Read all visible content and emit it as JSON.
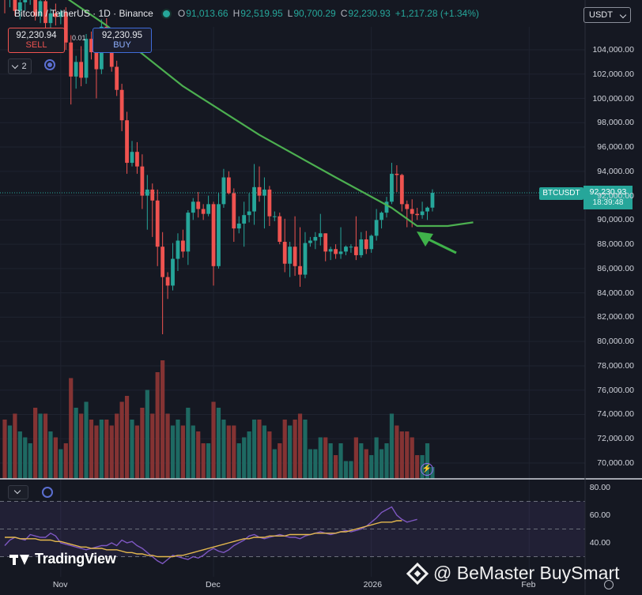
{
  "header": {
    "symbol": "Bitcoin / TetherUS · 1D · Binance",
    "open_key": "O",
    "open": "91,013.66",
    "high_key": "H",
    "high": "92,519.95",
    "low_key": "L",
    "low": "90,700.29",
    "close_key": "C",
    "close": "92,230.93",
    "change": "+1,217.28 (+1.34%)"
  },
  "trade": {
    "sell_price": "92,230.94",
    "sell_label": "SELL",
    "spread": "0.01",
    "buy_price": "92,230.95",
    "buy_label": "BUY"
  },
  "indicator_count": "2",
  "currency": "USDT",
  "last_price": {
    "symbol_tag": "BTCUSDT",
    "price": "92,230.93",
    "countdown": "18:39:48"
  },
  "price_axis": [
    "104,000.00",
    "102,000.00",
    "100,000.00",
    "98,000.00",
    "96,000.00",
    "94,000.00",
    "92,000.00",
    "90,000.00",
    "88,000.00",
    "86,000.00",
    "84,000.00",
    "82,000.00",
    "80,000.00",
    "78,000.00",
    "76,000.00",
    "74,000.00",
    "72,000.00",
    "70,000.00"
  ],
  "rsi_axis": [
    "80.00",
    "60.00",
    "40.00"
  ],
  "time_axis": [
    "Nov",
    "Dec",
    "2026",
    "Feb"
  ],
  "branding": {
    "logo_text": "TradingView",
    "watermark": "@ BeMaster BuySmart"
  },
  "colors": {
    "up": "#26a69a",
    "down": "#ef5350",
    "ma": "#4caf50",
    "rsi": "#7e57c2",
    "rsi_ma": "#e5b94e",
    "bg": "#151822"
  },
  "chart_data": {
    "type": "candlestick",
    "symbol": "BTCUSDT",
    "interval": "1D",
    "ylim": [
      69000,
      107000
    ],
    "moving_average": [
      {
        "date": "2025-10-20",
        "value": 112000
      },
      {
        "date": "2025-11-10",
        "value": 106000
      },
      {
        "date": "2025-11-25",
        "value": 101000
      },
      {
        "date": "2025-12-10",
        "value": 97000
      },
      {
        "date": "2025-12-25",
        "value": 93500
      },
      {
        "date": "2026-01-05",
        "value": 91000
      },
      {
        "date": "2026-01-10",
        "value": 89500
      },
      {
        "date": "2026-01-16",
        "value": 89500
      },
      {
        "date": "2026-01-21",
        "value": 89800
      }
    ],
    "candles": [
      {
        "d": "2025-10-21",
        "o": 108600,
        "h": 109200,
        "l": 107000,
        "c": 108100,
        "v": 0.5
      },
      {
        "d": "2025-10-22",
        "o": 108100,
        "h": 109400,
        "l": 107500,
        "c": 108900,
        "v": 0.45
      },
      {
        "d": "2025-10-23",
        "o": 108900,
        "h": 109300,
        "l": 106800,
        "c": 107200,
        "v": 0.55
      },
      {
        "d": "2025-10-24",
        "o": 107200,
        "h": 108300,
        "l": 106500,
        "c": 107900,
        "v": 0.4
      },
      {
        "d": "2025-10-25",
        "o": 107900,
        "h": 108600,
        "l": 107200,
        "c": 108200,
        "v": 0.35
      },
      {
        "d": "2025-10-26",
        "o": 108200,
        "h": 109100,
        "l": 107700,
        "c": 108700,
        "v": 0.3
      },
      {
        "d": "2025-10-27",
        "o": 108700,
        "h": 109300,
        "l": 106400,
        "c": 106800,
        "v": 0.6
      },
      {
        "d": "2025-10-28",
        "o": 106800,
        "h": 108500,
        "l": 106200,
        "c": 108000,
        "v": 0.55
      },
      {
        "d": "2025-10-29",
        "o": 108000,
        "h": 108700,
        "l": 105800,
        "c": 106200,
        "v": 0.55
      },
      {
        "d": "2025-10-30",
        "o": 106200,
        "h": 107400,
        "l": 105600,
        "c": 107000,
        "v": 0.4
      },
      {
        "d": "2025-10-31",
        "o": 107000,
        "h": 107800,
        "l": 106000,
        "c": 106700,
        "v": 0.35
      },
      {
        "d": "2025-11-01",
        "o": 106700,
        "h": 107300,
        "l": 106100,
        "c": 107100,
        "v": 0.25
      },
      {
        "d": "2025-11-02",
        "o": 107100,
        "h": 107500,
        "l": 104000,
        "c": 104600,
        "v": 0.3
      },
      {
        "d": "2025-11-03",
        "o": 104600,
        "h": 105200,
        "l": 99500,
        "c": 101800,
        "v": 0.85
      },
      {
        "d": "2025-11-04",
        "o": 101800,
        "h": 103500,
        "l": 100800,
        "c": 103000,
        "v": 0.6
      },
      {
        "d": "2025-11-05",
        "o": 103000,
        "h": 104300,
        "l": 101000,
        "c": 101700,
        "v": 0.55
      },
      {
        "d": "2025-11-06",
        "o": 101700,
        "h": 105300,
        "l": 101200,
        "c": 104900,
        "v": 0.65
      },
      {
        "d": "2025-11-07",
        "o": 104900,
        "h": 105500,
        "l": 103200,
        "c": 103800,
        "v": 0.5
      },
      {
        "d": "2025-11-08",
        "o": 103800,
        "h": 104700,
        "l": 100000,
        "c": 102400,
        "v": 0.45
      },
      {
        "d": "2025-11-09",
        "o": 102400,
        "h": 106500,
        "l": 102000,
        "c": 105900,
        "v": 0.5
      },
      {
        "d": "2025-11-10",
        "o": 105900,
        "h": 106600,
        "l": 104300,
        "c": 104700,
        "v": 0.5
      },
      {
        "d": "2025-11-11",
        "o": 104700,
        "h": 105200,
        "l": 102200,
        "c": 102600,
        "v": 0.45
      },
      {
        "d": "2025-11-12",
        "o": 102600,
        "h": 103100,
        "l": 100200,
        "c": 100700,
        "v": 0.55
      },
      {
        "d": "2025-11-13",
        "o": 100700,
        "h": 101200,
        "l": 97300,
        "c": 98200,
        "v": 0.65
      },
      {
        "d": "2025-11-14",
        "o": 98200,
        "h": 98900,
        "l": 93800,
        "c": 94700,
        "v": 0.7
      },
      {
        "d": "2025-11-15",
        "o": 94700,
        "h": 96500,
        "l": 94400,
        "c": 95600,
        "v": 0.5
      },
      {
        "d": "2025-11-16",
        "o": 95600,
        "h": 96400,
        "l": 93800,
        "c": 94400,
        "v": 0.45
      },
      {
        "d": "2025-11-17",
        "o": 94400,
        "h": 95400,
        "l": 90900,
        "c": 92000,
        "v": 0.6
      },
      {
        "d": "2025-11-18",
        "o": 92000,
        "h": 93700,
        "l": 89200,
        "c": 92500,
        "v": 0.75
      },
      {
        "d": "2025-11-19",
        "o": 92500,
        "h": 93000,
        "l": 88600,
        "c": 91600,
        "v": 0.55
      },
      {
        "d": "2025-11-20",
        "o": 91600,
        "h": 92500,
        "l": 86200,
        "c": 87800,
        "v": 0.9
      },
      {
        "d": "2025-11-21",
        "o": 87800,
        "h": 89000,
        "l": 80600,
        "c": 85300,
        "v": 1.0
      },
      {
        "d": "2025-11-22",
        "o": 85300,
        "h": 85700,
        "l": 83500,
        "c": 84600,
        "v": 0.55
      },
      {
        "d": "2025-11-23",
        "o": 84600,
        "h": 88100,
        "l": 84200,
        "c": 86800,
        "v": 0.45
      },
      {
        "d": "2025-11-24",
        "o": 86800,
        "h": 88900,
        "l": 85800,
        "c": 88300,
        "v": 0.5
      },
      {
        "d": "2025-11-25",
        "o": 88300,
        "h": 89200,
        "l": 86900,
        "c": 87400,
        "v": 0.45
      },
      {
        "d": "2025-11-26",
        "o": 87400,
        "h": 90800,
        "l": 86300,
        "c": 90600,
        "v": 0.6
      },
      {
        "d": "2025-11-27",
        "o": 90600,
        "h": 91800,
        "l": 90000,
        "c": 91500,
        "v": 0.45
      },
      {
        "d": "2025-11-28",
        "o": 91500,
        "h": 92300,
        "l": 90200,
        "c": 90900,
        "v": 0.4
      },
      {
        "d": "2025-11-29",
        "o": 90900,
        "h": 91300,
        "l": 90000,
        "c": 90500,
        "v": 0.3
      },
      {
        "d": "2025-11-30",
        "o": 90500,
        "h": 92000,
        "l": 90300,
        "c": 91300,
        "v": 0.3
      },
      {
        "d": "2025-12-01",
        "o": 91300,
        "h": 91500,
        "l": 84600,
        "c": 86200,
        "v": 0.65
      },
      {
        "d": "2025-12-02",
        "o": 86200,
        "h": 92200,
        "l": 86000,
        "c": 91300,
        "v": 0.6
      },
      {
        "d": "2025-12-03",
        "o": 91300,
        "h": 94200,
        "l": 91000,
        "c": 93500,
        "v": 0.5
      },
      {
        "d": "2025-12-04",
        "o": 93500,
        "h": 94000,
        "l": 92100,
        "c": 92200,
        "v": 0.45
      },
      {
        "d": "2025-12-05",
        "o": 92200,
        "h": 92600,
        "l": 88200,
        "c": 89300,
        "v": 0.45
      },
      {
        "d": "2025-12-06",
        "o": 89300,
        "h": 90300,
        "l": 88900,
        "c": 89700,
        "v": 0.3
      },
      {
        "d": "2025-12-07",
        "o": 89700,
        "h": 91500,
        "l": 87800,
        "c": 90400,
        "v": 0.35
      },
      {
        "d": "2025-12-08",
        "o": 90400,
        "h": 92200,
        "l": 89800,
        "c": 90700,
        "v": 0.4
      },
      {
        "d": "2025-12-09",
        "o": 90700,
        "h": 94600,
        "l": 89600,
        "c": 92700,
        "v": 0.5
      },
      {
        "d": "2025-12-10",
        "o": 92700,
        "h": 94400,
        "l": 91500,
        "c": 92000,
        "v": 0.5
      },
      {
        "d": "2025-12-11",
        "o": 92000,
        "h": 93500,
        "l": 89300,
        "c": 92500,
        "v": 0.45
      },
      {
        "d": "2025-12-12",
        "o": 92500,
        "h": 92800,
        "l": 89500,
        "c": 90300,
        "v": 0.4
      },
      {
        "d": "2025-12-13",
        "o": 90300,
        "h": 90700,
        "l": 89900,
        "c": 90300,
        "v": 0.25
      },
      {
        "d": "2025-12-14",
        "o": 90300,
        "h": 90600,
        "l": 88000,
        "c": 88200,
        "v": 0.3
      },
      {
        "d": "2025-12-15",
        "o": 88200,
        "h": 90100,
        "l": 85700,
        "c": 86400,
        "v": 0.5
      },
      {
        "d": "2025-12-16",
        "o": 86400,
        "h": 88200,
        "l": 85300,
        "c": 87800,
        "v": 0.45
      },
      {
        "d": "2025-12-17",
        "o": 87800,
        "h": 90300,
        "l": 85400,
        "c": 86200,
        "v": 0.5
      },
      {
        "d": "2025-12-18",
        "o": 86200,
        "h": 89400,
        "l": 84500,
        "c": 85500,
        "v": 0.55
      },
      {
        "d": "2025-12-19",
        "o": 85500,
        "h": 89000,
        "l": 85200,
        "c": 88100,
        "v": 0.5
      },
      {
        "d": "2025-12-20",
        "o": 88100,
        "h": 88600,
        "l": 87800,
        "c": 88300,
        "v": 0.25
      },
      {
        "d": "2025-12-21",
        "o": 88300,
        "h": 89000,
        "l": 87600,
        "c": 88600,
        "v": 0.25
      },
      {
        "d": "2025-12-22",
        "o": 88600,
        "h": 90500,
        "l": 87900,
        "c": 88900,
        "v": 0.35
      },
      {
        "d": "2025-12-23",
        "o": 88900,
        "h": 88900,
        "l": 86600,
        "c": 87400,
        "v": 0.35
      },
      {
        "d": "2025-12-24",
        "o": 87400,
        "h": 87800,
        "l": 86700,
        "c": 87600,
        "v": 0.3
      },
      {
        "d": "2025-12-25",
        "o": 87600,
        "h": 88000,
        "l": 86800,
        "c": 87200,
        "v": 0.2
      },
      {
        "d": "2025-12-26",
        "o": 87200,
        "h": 89400,
        "l": 86800,
        "c": 87400,
        "v": 0.3
      },
      {
        "d": "2025-12-27",
        "o": 87400,
        "h": 87900,
        "l": 87100,
        "c": 87800,
        "v": 0.15
      },
      {
        "d": "2025-12-28",
        "o": 87800,
        "h": 88000,
        "l": 87300,
        "c": 87800,
        "v": 0.15
      },
      {
        "d": "2025-12-29",
        "o": 87800,
        "h": 90300,
        "l": 86700,
        "c": 87100,
        "v": 0.35
      },
      {
        "d": "2025-12-30",
        "o": 87100,
        "h": 89000,
        "l": 86900,
        "c": 88400,
        "v": 0.3
      },
      {
        "d": "2025-12-31",
        "o": 88400,
        "h": 89100,
        "l": 87200,
        "c": 87600,
        "v": 0.25
      },
      {
        "d": "2026-01-01",
        "o": 87600,
        "h": 88800,
        "l": 87300,
        "c": 88700,
        "v": 0.2
      },
      {
        "d": "2026-01-02",
        "o": 88700,
        "h": 90900,
        "l": 88300,
        "c": 90000,
        "v": 0.35
      },
      {
        "d": "2026-01-03",
        "o": 90000,
        "h": 90700,
        "l": 89300,
        "c": 90600,
        "v": 0.25
      },
      {
        "d": "2026-01-04",
        "o": 90600,
        "h": 91900,
        "l": 90200,
        "c": 91500,
        "v": 0.3
      },
      {
        "d": "2026-01-05",
        "o": 91500,
        "h": 94700,
        "l": 91300,
        "c": 93800,
        "v": 0.55
      },
      {
        "d": "2026-01-06",
        "o": 93800,
        "h": 94500,
        "l": 92300,
        "c": 93700,
        "v": 0.45
      },
      {
        "d": "2026-01-07",
        "o": 93700,
        "h": 93800,
        "l": 90700,
        "c": 91300,
        "v": 0.4
      },
      {
        "d": "2026-01-08",
        "o": 91300,
        "h": 91600,
        "l": 89400,
        "c": 90900,
        "v": 0.4
      },
      {
        "d": "2026-01-09",
        "o": 90900,
        "h": 91700,
        "l": 89400,
        "c": 90500,
        "v": 0.35
      },
      {
        "d": "2026-01-10",
        "o": 90500,
        "h": 91000,
        "l": 90000,
        "c": 90400,
        "v": 0.2
      },
      {
        "d": "2026-01-11",
        "o": 90400,
        "h": 91500,
        "l": 90100,
        "c": 90700,
        "v": 0.2
      },
      {
        "d": "2026-01-12",
        "o": 90700,
        "h": 91100,
        "l": 90000,
        "c": 91013.66,
        "v": 0.3
      },
      {
        "d": "2026-01-13",
        "o": 91013.66,
        "h": 92519.95,
        "l": 90700.29,
        "c": 92230.93,
        "v": 0.1
      }
    ],
    "rsi": {
      "ylim": [
        20,
        85
      ],
      "bands": [
        70,
        50,
        30
      ],
      "values": [
        38,
        42,
        44,
        43,
        42,
        46,
        45,
        44,
        44,
        47,
        45,
        40,
        39,
        38,
        37,
        36,
        35,
        36,
        37,
        38,
        38,
        40,
        38,
        42,
        40,
        41,
        38,
        36,
        33,
        30,
        27,
        25,
        28,
        31,
        30,
        29,
        28,
        30,
        29,
        31,
        34,
        36,
        34,
        33,
        35,
        38,
        40,
        42,
        45,
        46,
        44,
        43,
        44,
        45,
        46,
        45,
        44,
        44,
        43,
        45,
        46,
        47,
        48,
        47,
        46,
        47,
        48,
        49,
        48,
        49,
        50,
        52,
        55,
        58,
        62,
        64,
        66,
        60,
        57,
        55,
        56,
        57
      ],
      "ma": [
        44,
        44,
        44,
        43,
        43,
        43,
        43,
        42,
        42,
        42,
        41,
        41,
        40,
        39,
        38,
        37,
        37,
        36,
        36,
        36,
        35,
        35,
        35,
        34,
        33,
        33,
        32,
        32,
        31,
        31,
        30,
        30,
        30,
        30,
        31,
        31,
        32,
        33,
        34,
        35,
        36,
        37,
        38,
        39,
        40,
        41,
        42,
        43,
        43,
        44,
        44,
        44,
        45,
        45,
        45,
        45,
        46,
        46,
        46,
        46,
        46,
        47,
        47,
        47,
        47,
        47,
        48,
        48,
        49,
        50,
        51,
        52,
        53,
        54,
        55,
        55,
        55,
        56,
        56
      ]
    },
    "annotations": [
      {
        "type": "arrow",
        "label": "",
        "target": "moving-average-touch"
      }
    ]
  }
}
